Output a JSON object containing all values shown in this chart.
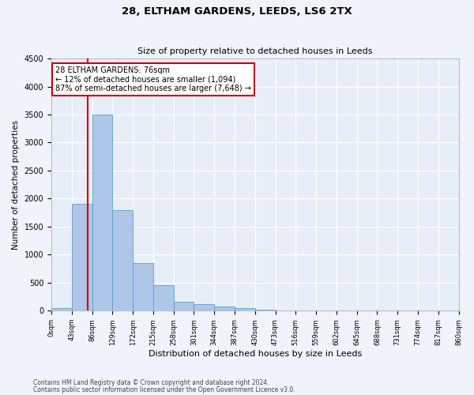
{
  "title1": "28, ELTHAM GARDENS, LEEDS, LS6 2TX",
  "title2": "Size of property relative to detached houses in Leeds",
  "xlabel": "Distribution of detached houses by size in Leeds",
  "ylabel": "Number of detached properties",
  "annotation_title": "28 ELTHAM GARDENS: 76sqm",
  "annotation_line1": "← 12% of detached houses are smaller (1,094)",
  "annotation_line2": "87% of semi-detached houses are larger (7,648) →",
  "property_size": 76,
  "bin_edges": [
    0,
    43,
    86,
    129,
    172,
    215,
    258,
    301,
    344,
    387,
    430,
    473,
    516,
    559,
    602,
    645,
    688,
    731,
    774,
    817,
    860
  ],
  "bar_values": [
    50,
    1900,
    3500,
    1800,
    850,
    450,
    160,
    110,
    80,
    40,
    20,
    10,
    5,
    5,
    3,
    2,
    2,
    2,
    1,
    1
  ],
  "bar_color": "#aec6e8",
  "bar_edge_color": "#5a9fd4",
  "vline_color": "#cc0000",
  "vline_x": 76,
  "annotation_box_color": "#cc0000",
  "background_color": "#e8eef8",
  "fig_background_color": "#f0f4fa",
  "grid_color": "#ffffff",
  "ylim": [
    0,
    4500
  ],
  "yticks": [
    0,
    500,
    1000,
    1500,
    2000,
    2500,
    3000,
    3500,
    4000,
    4500
  ],
  "footer1": "Contains HM Land Registry data © Crown copyright and database right 2024.",
  "footer2": "Contains public sector information licensed under the Open Government Licence v3.0."
}
